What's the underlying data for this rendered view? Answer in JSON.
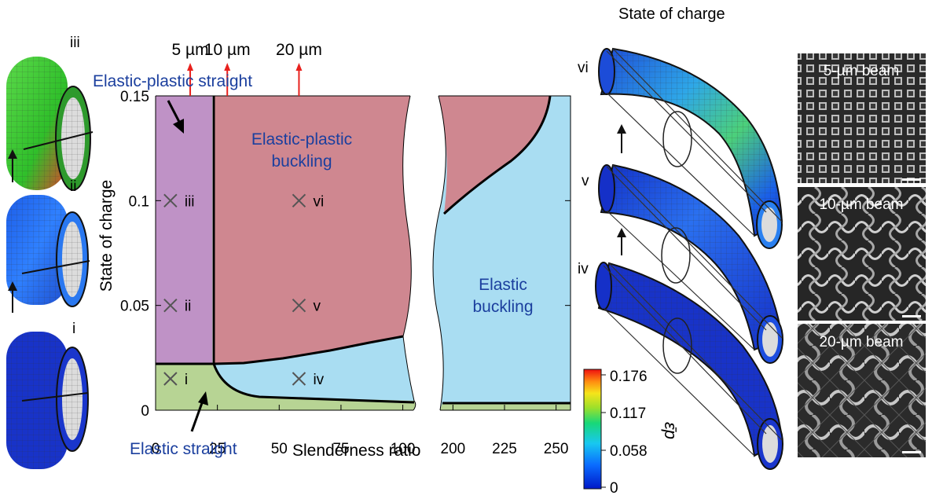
{
  "left_panel": {
    "labels": [
      "iii",
      "ii",
      "i"
    ]
  },
  "phase_diagram": {
    "annotations": {
      "elastic_plastic_straight": "Elastic-plastic straight",
      "elastic_plastic_buckling_line1": "Elastic-plastic",
      "elastic_plastic_buckling_line2": "buckling",
      "elastic_buckling_line1": "Elastic",
      "elastic_buckling_line2": "buckling",
      "elastic_straight": "Elastic straight"
    },
    "xlabel": "Slenderness ratio",
    "ylabel": "State of charge",
    "top_markers": [
      "5 µm",
      "10 µm",
      "20 µm"
    ],
    "points": [
      {
        "label": "iii"
      },
      {
        "label": "ii"
      },
      {
        "label": "i"
      },
      {
        "label": "vi"
      },
      {
        "label": "v"
      },
      {
        "label": "iv"
      }
    ],
    "colors": {
      "elastic_plastic_straight": "#bf92c6",
      "elastic_plastic_buckling": "#cf8790",
      "elastic_buckling": "#a9ddf2",
      "elastic_straight": "#b7d494",
      "marker": "#e8211d"
    }
  },
  "chart_data": {
    "type": "area",
    "xlabel": "Slenderness ratio",
    "ylabel": "State of charge",
    "x_ticks_left": [
      "0",
      "25",
      "50",
      "75",
      "100"
    ],
    "x_ticks_right": [
      "200",
      "225",
      "250"
    ],
    "y_ticks": [
      "0",
      "0.05",
      "0.1",
      "0.15"
    ],
    "xlim_left": [
      0,
      103
    ],
    "xlim_right": [
      193,
      257
    ],
    "ylim": [
      0,
      0.15
    ],
    "grid": false,
    "points": [
      {
        "label": "iii",
        "x": 6,
        "y": 0.1
      },
      {
        "label": "ii",
        "x": 6,
        "y": 0.05
      },
      {
        "label": "i",
        "x": 6,
        "y": 0.015
      },
      {
        "label": "vi",
        "x": 58,
        "y": 0.1
      },
      {
        "label": "v",
        "x": 58,
        "y": 0.05
      },
      {
        "label": "iv",
        "x": 58,
        "y": 0.015
      }
    ],
    "top_markers": [
      {
        "label": "5 µm",
        "x": 14
      },
      {
        "label": "10 µm",
        "x": 29
      },
      {
        "label": "20 µm",
        "x": 58
      }
    ]
  },
  "right_panel": {
    "title": "State of charge",
    "labels": [
      "vi",
      "v",
      "iv"
    ],
    "colorbar": {
      "ticks": [
        "0.176",
        "0.117",
        "0.058",
        "0"
      ],
      "label": "ε̄p"
    },
    "sem_labels": [
      "5-µm beam",
      "10-µm beam",
      "20-µm beam"
    ]
  }
}
